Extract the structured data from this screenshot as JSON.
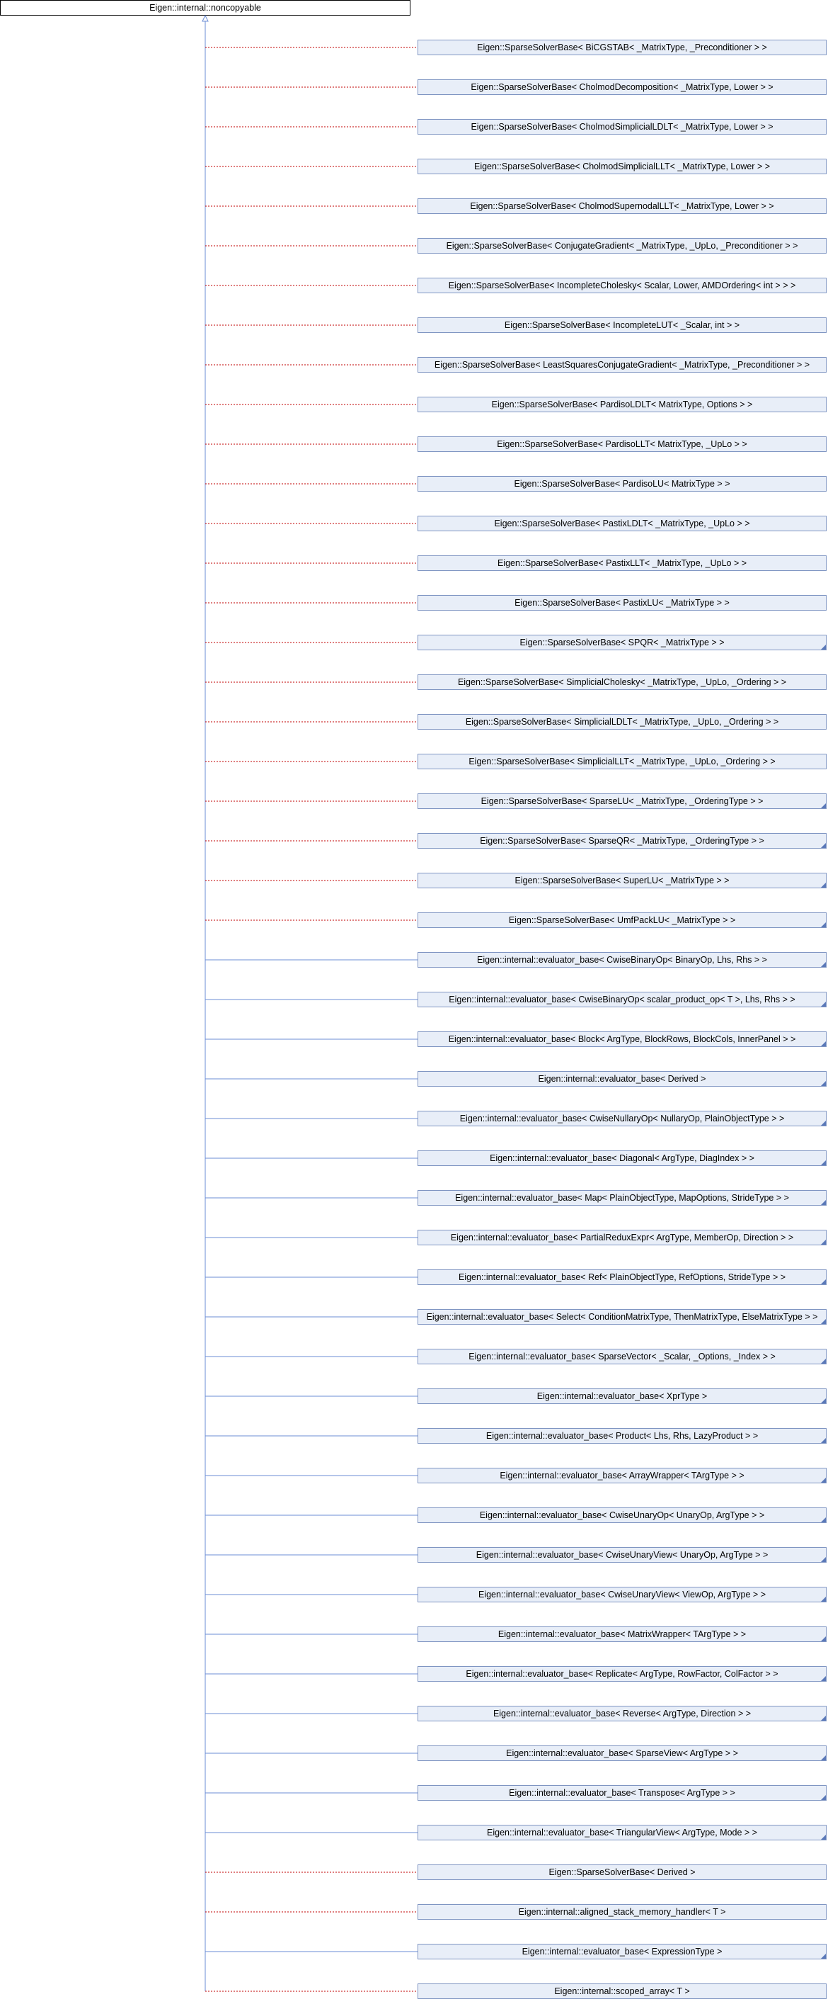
{
  "root": {
    "label": "Eigen::internal::noncopyable"
  },
  "children": [
    {
      "label": "Eigen::SparseSolverBase< BiCGSTAB< _MatrixType, _Preconditioner > >"
    },
    {
      "label": "Eigen::SparseSolverBase< CholmodDecomposition< _MatrixType, Lower > >"
    },
    {
      "label": "Eigen::SparseSolverBase< CholmodSimplicialLDLT< _MatrixType, Lower > >"
    },
    {
      "label": "Eigen::SparseSolverBase< CholmodSimplicialLLT< _MatrixType, Lower > >"
    },
    {
      "label": "Eigen::SparseSolverBase< CholmodSupernodalLLT< _MatrixType, Lower > >"
    },
    {
      "label": "Eigen::SparseSolverBase< ConjugateGradient< _MatrixType, _UpLo, _Preconditioner > >"
    },
    {
      "label": "Eigen::SparseSolverBase< IncompleteCholesky< Scalar, Lower, AMDOrdering< int > > >"
    },
    {
      "label": "Eigen::SparseSolverBase< IncompleteLUT< _Scalar, int > >"
    },
    {
      "label": "Eigen::SparseSolverBase< LeastSquaresConjugateGradient< _MatrixType, _Preconditioner > >"
    },
    {
      "label": "Eigen::SparseSolverBase< PardisoLDLT< MatrixType, Options > >"
    },
    {
      "label": "Eigen::SparseSolverBase< PardisoLLT< MatrixType, _UpLo > >"
    },
    {
      "label": "Eigen::SparseSolverBase< PardisoLU< MatrixType > >"
    },
    {
      "label": "Eigen::SparseSolverBase< PastixLDLT< _MatrixType, _UpLo > >"
    },
    {
      "label": "Eigen::SparseSolverBase< PastixLLT< _MatrixType, _UpLo > >"
    },
    {
      "label": "Eigen::SparseSolverBase< PastixLU< _MatrixType > >"
    },
    {
      "label": "Eigen::SparseSolverBase< SPQR< _MatrixType > >"
    },
    {
      "label": "Eigen::SparseSolverBase< SimplicialCholesky< _MatrixType, _UpLo, _Ordering > >"
    },
    {
      "label": "Eigen::SparseSolverBase< SimplicialLDLT< _MatrixType, _UpLo, _Ordering > >"
    },
    {
      "label": "Eigen::SparseSolverBase< SimplicialLLT< _MatrixType, _UpLo, _Ordering > >"
    },
    {
      "label": "Eigen::SparseSolverBase< SparseLU< _MatrixType, _OrderingType > >"
    },
    {
      "label": "Eigen::SparseSolverBase< SparseQR< _MatrixType, _OrderingType > >"
    },
    {
      "label": "Eigen::SparseSolverBase< SuperLU< _MatrixType > >"
    },
    {
      "label": "Eigen::SparseSolverBase< UmfPackLU< _MatrixType > >"
    },
    {
      "label": "Eigen::internal::evaluator_base< CwiseBinaryOp< BinaryOp, Lhs, Rhs > >"
    },
    {
      "label": "Eigen::internal::evaluator_base< CwiseBinaryOp< scalar_product_op< T >, Lhs, Rhs > >"
    },
    {
      "label": "Eigen::internal::evaluator_base< Block< ArgType, BlockRows, BlockCols, InnerPanel > >"
    },
    {
      "label": "Eigen::internal::evaluator_base< Derived >"
    },
    {
      "label": "Eigen::internal::evaluator_base< CwiseNullaryOp< NullaryOp, PlainObjectType > >"
    },
    {
      "label": "Eigen::internal::evaluator_base< Diagonal< ArgType, DiagIndex > >"
    },
    {
      "label": "Eigen::internal::evaluator_base< Map< PlainObjectType, MapOptions, StrideType > >"
    },
    {
      "label": "Eigen::internal::evaluator_base< PartialReduxExpr< ArgType, MemberOp, Direction > >"
    },
    {
      "label": "Eigen::internal::evaluator_base< Ref< PlainObjectType, RefOptions, StrideType > >"
    },
    {
      "label": "Eigen::internal::evaluator_base< Select< ConditionMatrixType, ThenMatrixType, ElseMatrixType > >"
    },
    {
      "label": "Eigen::internal::evaluator_base< SparseVector< _Scalar, _Options, _Index > >"
    },
    {
      "label": "Eigen::internal::evaluator_base< XprType >"
    },
    {
      "label": "Eigen::internal::evaluator_base< Product< Lhs, Rhs, LazyProduct > >"
    },
    {
      "label": "Eigen::internal::evaluator_base< ArrayWrapper< TArgType > >"
    },
    {
      "label": "Eigen::internal::evaluator_base< CwiseUnaryOp< UnaryOp, ArgType > >"
    },
    {
      "label": "Eigen::internal::evaluator_base< CwiseUnaryView< UnaryOp, ArgType > >"
    },
    {
      "label": "Eigen::internal::evaluator_base< CwiseUnaryView< ViewOp, ArgType > >"
    },
    {
      "label": "Eigen::internal::evaluator_base< MatrixWrapper< TArgType > >"
    },
    {
      "label": "Eigen::internal::evaluator_base< Replicate< ArgType, RowFactor, ColFactor > >"
    },
    {
      "label": "Eigen::internal::evaluator_base< Reverse< ArgType, Direction > >"
    },
    {
      "label": "Eigen::internal::evaluator_base< SparseView< ArgType > >"
    },
    {
      "label": "Eigen::internal::evaluator_base< Transpose< ArgType > >"
    },
    {
      "label": "Eigen::internal::evaluator_base< TriangularView< ArgType, Mode > >"
    },
    {
      "label": "Eigen::SparseSolverBase< Derived >"
    },
    {
      "label": "Eigen::internal::aligned_stack_memory_handler< T >"
    },
    {
      "label": "Eigen::internal::evaluator_base< ExpressionType >"
    },
    {
      "label": "Eigen::internal::scoped_array< T >"
    }
  ]
}
